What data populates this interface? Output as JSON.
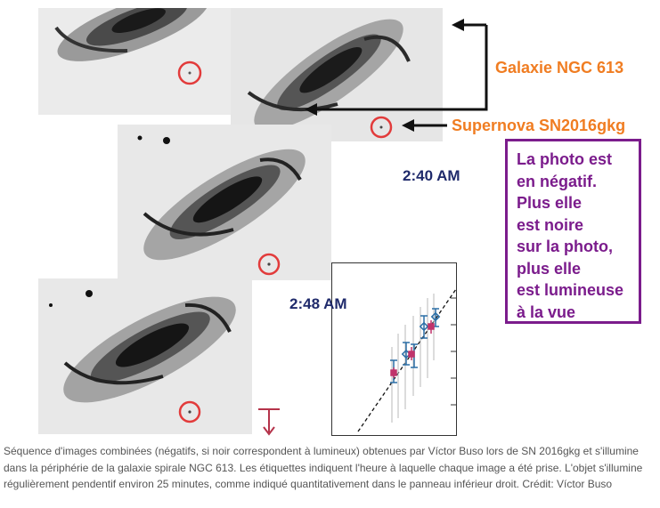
{
  "photos": [
    {
      "name": "photo-1",
      "time": ""
    },
    {
      "name": "photo-2",
      "time": ""
    },
    {
      "name": "photo-3",
      "time": "2:40 AM"
    },
    {
      "name": "photo-4",
      "time": "2:48 AM"
    }
  ],
  "labels": {
    "galaxy": "Galaxie NGC 613",
    "supernova": "Supernova SN2016gkg"
  },
  "note_lines": [
    "La photo est",
    "en négatif.",
    "Plus elle",
    "est noire",
    "sur la photo,",
    "plus elle",
    "est lumineuse",
    "à la vue"
  ],
  "caption": "Séquence d'images combinées (négatifs, si noir correspondent à lumineux) obtenues par Víctor Buso lors de SN 2016gkg et s'illumine dans la périphérie de la galaxie spirale NGC 613. Les étiquettes indiquent l'heure à laquelle chaque image a été prise. L'objet s'illumine régulièrement pendentif environ 25 minutes, comme indiqué quantitativement dans le panneau inférieur droit. Crédit: Víctor Buso",
  "colors": {
    "marker_circle": "#e23b3b",
    "label_orange": "#f07d22",
    "note_purple": "#7b1c8c",
    "time_navy": "#1f2a6b"
  }
}
